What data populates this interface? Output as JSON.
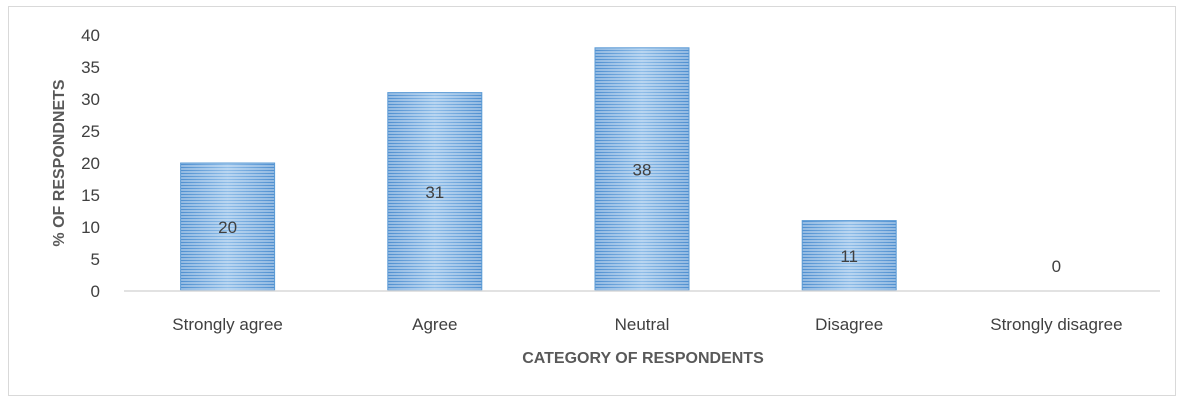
{
  "chart_data": {
    "type": "bar",
    "categories": [
      "Strongly agree",
      "Agree",
      "Neutral",
      "Disagree",
      "Strongly disagree"
    ],
    "values": [
      20,
      31,
      38,
      11,
      0
    ],
    "data_labels": [
      "20",
      "31",
      "38",
      "11",
      "0"
    ],
    "xlabel": "CATEGORY OF RESPONDENTS",
    "ylabel": "% OF RESPONDNETS",
    "ylim": [
      0,
      40
    ],
    "yticks": [
      0,
      5,
      10,
      15,
      20,
      25,
      30,
      35,
      40
    ],
    "grid": false,
    "legend": "none",
    "bar_color": "#5b9bd5",
    "bar_fill_pattern": "horizontal-stripes"
  }
}
